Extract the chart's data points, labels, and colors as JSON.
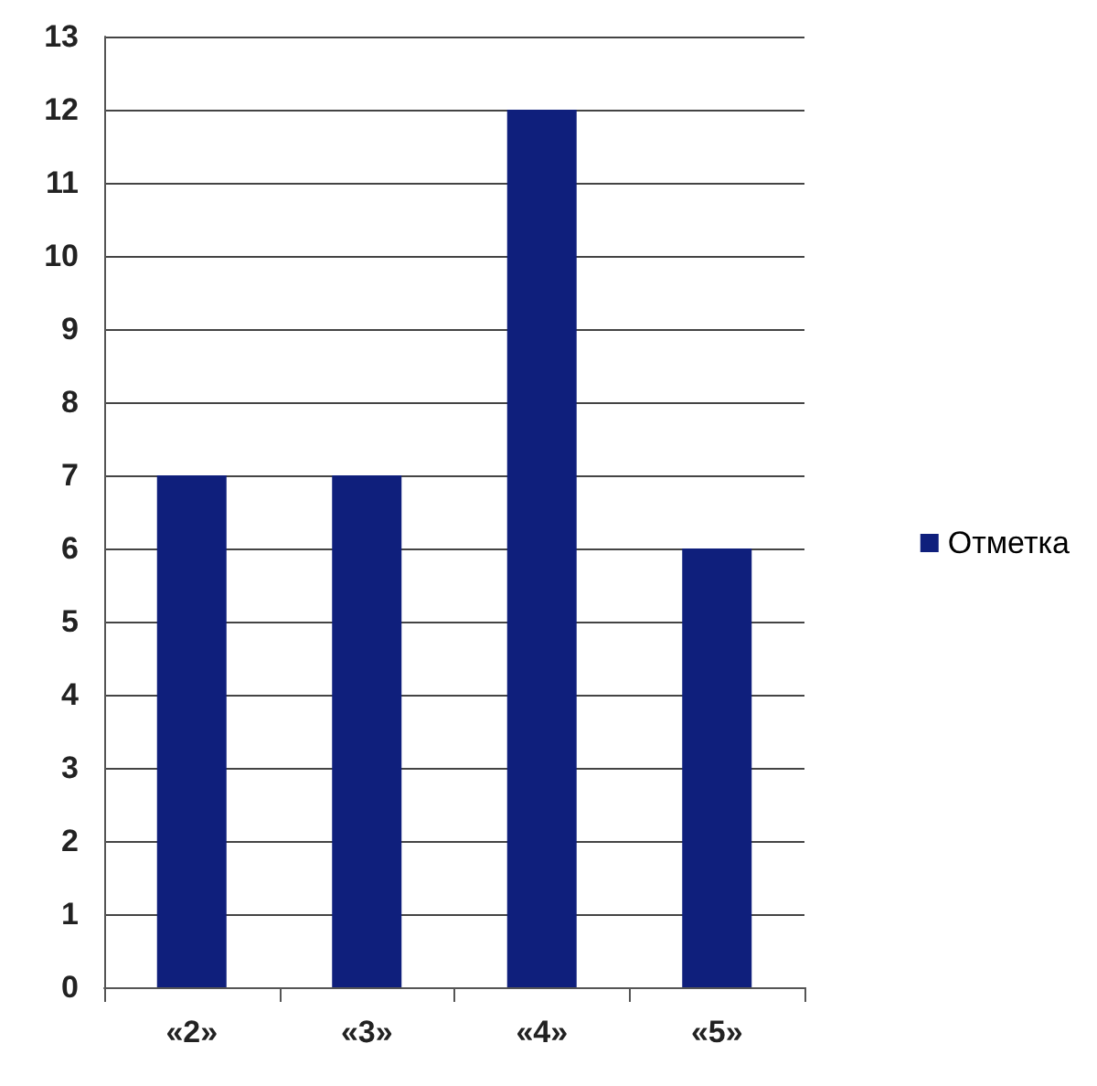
{
  "chart_data": {
    "type": "bar",
    "categories": [
      "«2»",
      "«3»",
      "«4»",
      "«5»"
    ],
    "series": [
      {
        "name": "Отметка",
        "color": "#0f1f7c",
        "values": [
          7,
          7,
          12,
          6
        ]
      }
    ],
    "ylim": [
      0,
      13
    ],
    "yticks": [
      0,
      1,
      2,
      3,
      4,
      5,
      6,
      7,
      8,
      9,
      10,
      11,
      12,
      13
    ],
    "grid": "y",
    "legend": "right"
  }
}
